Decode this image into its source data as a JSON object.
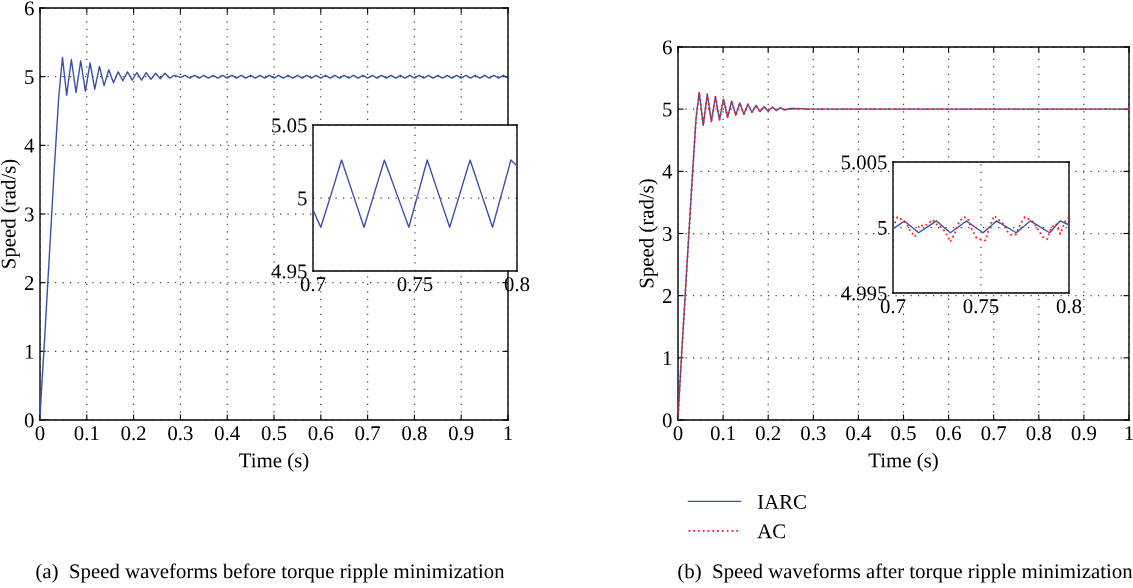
{
  "chart_data": [
    {
      "type": "line",
      "xlabel": "Time (s)",
      "ylabel": "Speed (rad/s)",
      "annotations": [
        "(a)  Speed waveforms before torque ripple minimization"
      ],
      "xlim": [
        0,
        1
      ],
      "ylim": [
        0,
        6
      ],
      "xticks": [
        0,
        0.1,
        0.2,
        0.3,
        0.4,
        0.5,
        0.6,
        0.7,
        0.8,
        0.9,
        1
      ],
      "yticks": [
        0,
        1,
        2,
        3,
        4,
        5,
        6
      ],
      "grid": true,
      "line_style": "solid",
      "series": [
        {
          "color": "#3a4fa8",
          "x": [
            0,
            0.002,
            0.01,
            0.02,
            0.03,
            0.04,
            0.048,
            0.057,
            0.067,
            0.077,
            0.087,
            0.097,
            0.107,
            0.117,
            0.127,
            0.137,
            0.147,
            0.157,
            0.167,
            0.177,
            0.187,
            0.197,
            0.207,
            0.217,
            0.227,
            0.237,
            0.247,
            0.257,
            0.267,
            0.277,
            0.287,
            0.3,
            0.31,
            0.32,
            0.33,
            0.34,
            0.35,
            0.36,
            0.37,
            0.38,
            0.39,
            0.4,
            0.41,
            0.42,
            0.43,
            0.44,
            0.45,
            0.46,
            0.47,
            0.48,
            0.49,
            0.5,
            0.51,
            0.52,
            0.53,
            0.54,
            0.55,
            0.56,
            0.57,
            0.58,
            0.59,
            0.6,
            0.61,
            0.62,
            0.63,
            0.64,
            0.65,
            0.66,
            0.67,
            0.68,
            0.69,
            0.7,
            0.71,
            0.72,
            0.73,
            0.74,
            0.75,
            0.76,
            0.77,
            0.78,
            0.79,
            0.8,
            0.81,
            0.82,
            0.83,
            0.84,
            0.85,
            0.86,
            0.87,
            0.88,
            0.89,
            0.9,
            0.91,
            0.92,
            0.93,
            0.94,
            0.95,
            0.96,
            0.97,
            0.98,
            0.99,
            1
          ],
          "values": [
            0,
            0.3,
            1.2,
            2.4,
            3.6,
            4.7,
            5.28,
            4.73,
            5.25,
            4.77,
            5.23,
            4.79,
            5.2,
            4.82,
            5.15,
            4.87,
            5.1,
            4.91,
            5.07,
            4.94,
            5.07,
            4.95,
            5.06,
            4.95,
            5.06,
            4.96,
            5.05,
            4.97,
            5.05,
            4.98,
            5.02,
            4.99,
            5.02,
            4.98,
            5.02,
            4.98,
            5.02,
            4.98,
            5.02,
            4.98,
            5.02,
            4.98,
            5.02,
            4.98,
            5.02,
            4.98,
            5.02,
            4.98,
            5.02,
            4.98,
            5.02,
            4.98,
            5.02,
            4.98,
            5.02,
            4.98,
            5.02,
            4.98,
            5.02,
            4.98,
            5.02,
            4.98,
            5.02,
            4.98,
            5.02,
            4.98,
            5.02,
            4.98,
            5.02,
            4.98,
            5.02,
            4.98,
            5.02,
            4.98,
            5.02,
            4.98,
            5.02,
            4.98,
            5.02,
            4.98,
            5.02,
            4.98,
            5.02,
            4.98,
            5.02,
            4.98,
            5.02,
            4.98,
            5.02,
            4.98,
            5.02,
            4.98,
            5.02,
            4.98,
            5.02,
            4.98,
            5.02,
            4.98,
            5.02,
            4.98,
            5.02,
            4.98
          ]
        }
      ]
    },
    {
      "type": "line",
      "xlim": [
        0.7,
        0.8
      ],
      "ylim": [
        4.95,
        5.05
      ],
      "xticks": [
        0.7,
        0.75,
        0.8
      ],
      "yticks": [
        4.95,
        5,
        5.05
      ],
      "grid": true,
      "line_style": "solid",
      "series": [
        {
          "color": "#3a4fa8",
          "x": [
            0.7,
            0.7038,
            0.709,
            0.714,
            0.7195,
            0.725,
            0.73,
            0.735,
            0.741,
            0.747,
            0.7515,
            0.756,
            0.7615,
            0.767,
            0.772,
            0.777,
            0.7825,
            0.788,
            0.7925,
            0.797,
            0.8
          ],
          "values": [
            4.992,
            4.98,
            5.003,
            5.026,
            5.003,
            4.98,
            5.003,
            5.026,
            5.003,
            4.98,
            5.003,
            5.026,
            5.003,
            4.98,
            5.003,
            5.026,
            5.003,
            4.98,
            5.003,
            5.026,
            5.022
          ]
        }
      ]
    },
    {
      "type": "line",
      "xlabel": "Time (s)",
      "ylabel": "Speed (rad/s)",
      "annotations": [
        "(b)  Speed waveforms after torque ripple minimization"
      ],
      "xlim": [
        0,
        1
      ],
      "ylim": [
        0,
        6
      ],
      "xticks": [
        0,
        0.1,
        0.2,
        0.3,
        0.4,
        0.5,
        0.6,
        0.7,
        0.8,
        0.9,
        1
      ],
      "yticks": [
        0,
        1,
        2,
        3,
        4,
        5,
        6
      ],
      "grid": true,
      "legend": "bottom left",
      "series": [
        {
          "name": "IARC",
          "color": "#3a4fa8",
          "line_style": "solid",
          "x": [
            0,
            0.002,
            0.01,
            0.02,
            0.03,
            0.04,
            0.047,
            0.056,
            0.065,
            0.074,
            0.083,
            0.092,
            0.101,
            0.11,
            0.119,
            0.128,
            0.137,
            0.146,
            0.155,
            0.164,
            0.173,
            0.182,
            0.191,
            0.2,
            0.209,
            0.218,
            0.227,
            0.236,
            0.25,
            0.3,
            0.5,
            0.7,
            1
          ],
          "values": [
            0,
            0.3,
            1.3,
            2.5,
            3.7,
            4.85,
            5.27,
            4.74,
            5.24,
            4.8,
            5.2,
            4.83,
            5.16,
            4.87,
            5.13,
            4.9,
            5.1,
            4.92,
            5.08,
            4.95,
            5.06,
            4.96,
            5.04,
            4.97,
            5.03,
            4.98,
            5.02,
            4.99,
            5.01,
            5,
            5,
            5,
            5
          ]
        },
        {
          "name": "AC",
          "color": "#ff2020",
          "line_style": "dotted",
          "x": [
            0,
            0.002,
            0.01,
            0.02,
            0.03,
            0.04,
            0.047,
            0.056,
            0.065,
            0.074,
            0.083,
            0.092,
            0.101,
            0.11,
            0.119,
            0.128,
            0.137,
            0.146,
            0.155,
            0.164,
            0.173,
            0.182,
            0.191,
            0.2,
            0.209,
            0.218,
            0.227,
            0.236,
            0.25,
            0.3,
            0.5,
            0.7,
            1
          ],
          "values": [
            0,
            0.3,
            1.3,
            2.5,
            3.7,
            4.85,
            5.27,
            4.74,
            5.24,
            4.8,
            5.2,
            4.83,
            5.16,
            4.87,
            5.13,
            4.9,
            5.1,
            4.92,
            5.08,
            4.95,
            5.06,
            4.96,
            5.04,
            4.97,
            5.03,
            4.98,
            5.02,
            4.99,
            5.01,
            5,
            5,
            5,
            5
          ]
        }
      ]
    },
    {
      "type": "line",
      "xlim": [
        0.7,
        0.8
      ],
      "ylim": [
        4.995,
        5.005
      ],
      "xticks": [
        0.7,
        0.75,
        0.8
      ],
      "yticks": [
        4.995,
        5,
        5.005
      ],
      "grid": true,
      "series": [
        {
          "color": "#3a4fa8",
          "line_style": "solid",
          "x": [
            0.7,
            0.7065,
            0.7146,
            0.7247,
            0.7326,
            0.7417,
            0.7512,
            0.7588,
            0.77,
            0.778,
            0.789,
            0.795,
            0.8
          ],
          "values": [
            4.9999,
            5.0005,
            4.9996,
            5.0005,
            4.9996,
            5.0005,
            4.9996,
            5.0005,
            4.9996,
            5.0005,
            4.9996,
            5.0005,
            5.0002
          ]
        },
        {
          "color": "#ff2020",
          "line_style": "dotted",
          "x": [
            0.7,
            0.7025,
            0.705,
            0.7075,
            0.71,
            0.7125,
            0.715,
            0.7175,
            0.72,
            0.7225,
            0.725,
            0.7275,
            0.73,
            0.7325,
            0.735,
            0.7375,
            0.74,
            0.7425,
            0.745,
            0.7475,
            0.75,
            0.7525,
            0.755,
            0.7575,
            0.76,
            0.7625,
            0.765,
            0.7675,
            0.77,
            0.7725,
            0.775,
            0.7775,
            0.78,
            0.7825,
            0.785,
            0.7875,
            0.79,
            0.7925,
            0.795,
            0.7975,
            0.8
          ],
          "values": [
            5.0,
            5.0008,
            5.0006,
            5.0003,
            4.9997,
            4.9993,
            5.0002,
            5.0001,
            5.0003,
            5.0006,
            5.0002,
            5.0,
            4.9996,
            4.9989,
            4.9995,
            5.0004,
            5.0008,
            5.0007,
            4.9998,
            4.9992,
            4.9991,
            4.999,
            5.0001,
            5.0009,
            5.0006,
            5.0003,
            4.9997,
            4.9994,
            4.9995,
            5.0003,
            5.0008,
            5.0006,
            5.0004,
            4.9998,
            4.9993,
            4.9991,
            5.0,
            5.0003,
            4.9995,
            5.0004,
            5.0008
          ]
        }
      ]
    }
  ]
}
